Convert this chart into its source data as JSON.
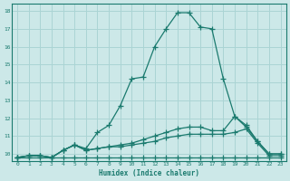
{
  "xlabel": "Humidex (Indice chaleur)",
  "bg_color": "#cce8e8",
  "grid_color": "#aad4d4",
  "line_color": "#1a7a6e",
  "xlim": [
    -0.5,
    23.5
  ],
  "ylim": [
    9.6,
    18.4
  ],
  "xticks": [
    0,
    1,
    2,
    3,
    4,
    5,
    6,
    7,
    8,
    9,
    10,
    11,
    12,
    13,
    14,
    15,
    16,
    17,
    18,
    19,
    20,
    21,
    22,
    23
  ],
  "yticks": [
    10,
    11,
    12,
    13,
    14,
    15,
    16,
    17,
    18
  ],
  "series": [
    {
      "x": [
        0,
        1,
        2,
        3,
        4,
        5,
        6,
        7,
        8,
        9,
        10,
        11,
        12,
        13,
        14,
        15,
        16,
        17,
        18,
        19,
        20,
        21,
        22,
        23
      ],
      "y": [
        9.8,
        9.9,
        9.9,
        9.8,
        10.2,
        10.5,
        10.3,
        11.2,
        11.6,
        12.7,
        14.2,
        14.3,
        16.0,
        17.0,
        17.9,
        17.9,
        17.1,
        17.0,
        14.2,
        12.1,
        11.6,
        10.7,
        10.0,
        10.0
      ]
    },
    {
      "x": [
        0,
        1,
        2,
        3,
        4,
        5,
        6,
        7,
        8,
        9,
        10,
        11,
        12,
        13,
        14,
        15,
        16,
        17,
        18,
        19,
        20,
        21,
        22,
        23
      ],
      "y": [
        9.8,
        9.9,
        9.9,
        9.8,
        10.2,
        10.5,
        10.2,
        10.3,
        10.4,
        10.5,
        10.6,
        10.8,
        11.0,
        11.2,
        11.4,
        11.5,
        11.5,
        11.3,
        11.3,
        12.1,
        11.5,
        10.7,
        10.0,
        10.0
      ]
    },
    {
      "x": [
        0,
        1,
        2,
        3,
        4,
        5,
        6,
        7,
        8,
        9,
        10,
        11,
        12,
        13,
        14,
        15,
        16,
        17,
        18,
        19,
        20,
        21,
        22,
        23
      ],
      "y": [
        9.8,
        9.9,
        9.9,
        9.8,
        10.2,
        10.5,
        10.2,
        10.3,
        10.4,
        10.4,
        10.5,
        10.6,
        10.7,
        10.9,
        11.0,
        11.1,
        11.1,
        11.1,
        11.1,
        11.2,
        11.4,
        10.6,
        9.9,
        9.9
      ]
    },
    {
      "x": [
        0,
        1,
        2,
        3,
        4,
        5,
        6,
        7,
        8,
        9,
        10,
        11,
        12,
        13,
        14,
        15,
        16,
        17,
        18,
        19,
        20,
        21,
        22,
        23
      ],
      "y": [
        9.8,
        9.8,
        9.8,
        9.8,
        9.8,
        9.8,
        9.8,
        9.8,
        9.8,
        9.8,
        9.8,
        9.8,
        9.8,
        9.8,
        9.8,
        9.8,
        9.8,
        9.8,
        9.8,
        9.8,
        9.8,
        9.8,
        9.8,
        9.8
      ]
    }
  ]
}
